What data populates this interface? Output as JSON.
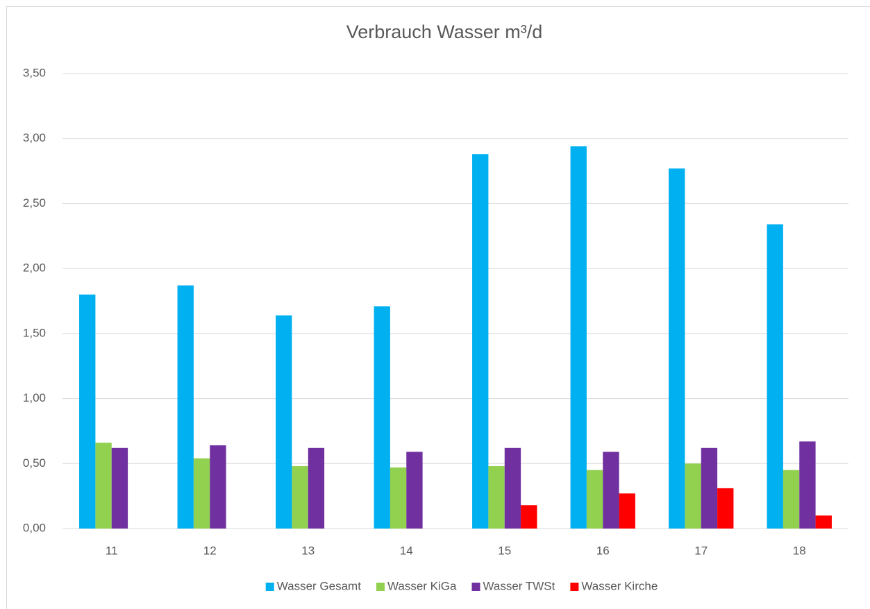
{
  "chart_data": {
    "type": "bar",
    "title": "Verbrauch Wasser m³/d",
    "categories": [
      "11",
      "12",
      "13",
      "14",
      "15",
      "16",
      "17",
      "18"
    ],
    "series": [
      {
        "name": "Wasser Gesamt",
        "color": "#00b0f0",
        "values": [
          1.8,
          1.87,
          1.64,
          1.71,
          2.88,
          2.94,
          2.77,
          2.34
        ]
      },
      {
        "name": "Wasser KiGa",
        "color": "#92d050",
        "values": [
          0.66,
          0.54,
          0.48,
          0.47,
          0.48,
          0.45,
          0.5,
          0.45
        ]
      },
      {
        "name": "Wasser TWSt",
        "color": "#7030a0",
        "values": [
          0.62,
          0.64,
          0.62,
          0.59,
          0.62,
          0.59,
          0.62,
          0.67
        ]
      },
      {
        "name": "Wasser Kirche",
        "color": "#ff0000",
        "values": [
          null,
          null,
          null,
          null,
          0.18,
          0.27,
          0.31,
          0.1
        ]
      }
    ],
    "ylim": [
      0,
      3.5
    ],
    "yticks": [
      {
        "value": 0,
        "label": "0,00"
      },
      {
        "value": 0.5,
        "label": "0,50"
      },
      {
        "value": 1,
        "label": "1,00"
      },
      {
        "value": 1.5,
        "label": "1,50"
      },
      {
        "value": 2,
        "label": "2,00"
      },
      {
        "value": 2.5,
        "label": "2,50"
      },
      {
        "value": 3,
        "label": "3,00"
      },
      {
        "value": 3.5,
        "label": "3,50"
      }
    ],
    "grid": true,
    "legend": "bottom"
  }
}
